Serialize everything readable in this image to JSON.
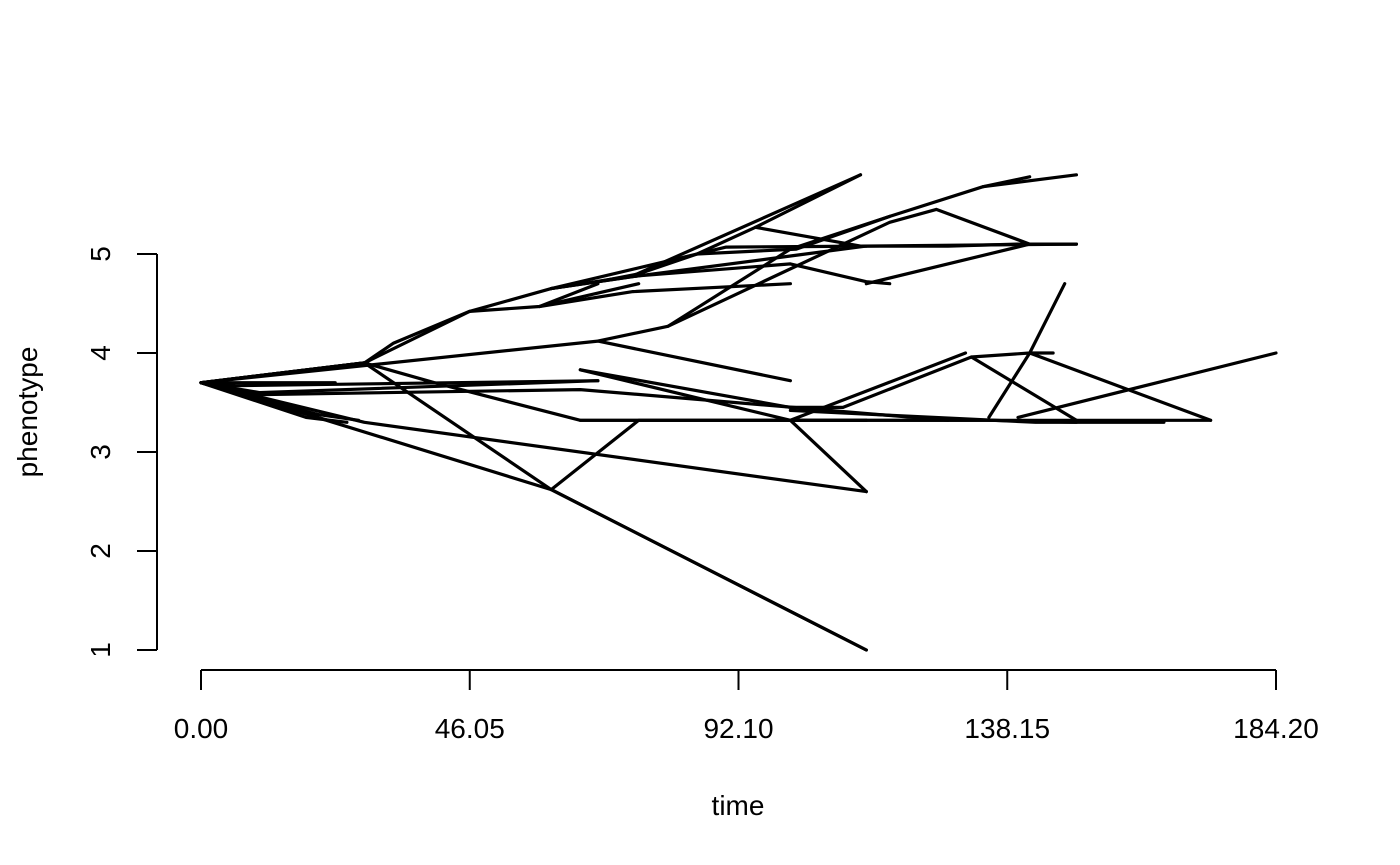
{
  "chart_data": {
    "type": "line",
    "title": "",
    "xlabel": "time",
    "ylabel": "phenotype",
    "xlim": [
      0,
      184.2
    ],
    "ylim": [
      1,
      5.8
    ],
    "x_ticks": [
      "0.00",
      "46.05",
      "92.10",
      "138.15",
      "184.20"
    ],
    "y_ticks": [
      "1",
      "2",
      "3",
      "4",
      "5"
    ],
    "grid": false,
    "legend": "none",
    "series": [
      {
        "x": [
          0,
          5,
          60,
          114
        ],
        "y": [
          3.7,
          3.62,
          2.62,
          1.0
        ]
      },
      {
        "x": [
          0,
          28,
          60,
          114
        ],
        "y": [
          3.7,
          3.9,
          2.62,
          1.0
        ]
      },
      {
        "x": [
          60,
          75,
          101,
          114
        ],
        "y": [
          2.62,
          3.32,
          3.32,
          2.6
        ]
      },
      {
        "x": [
          0,
          28,
          114
        ],
        "y": [
          3.7,
          3.3,
          2.6
        ]
      },
      {
        "x": [
          0,
          17,
          23
        ],
        "y": [
          3.7,
          3.4,
          3.3
        ]
      },
      {
        "x": [
          0,
          23
        ],
        "y": [
          3.7,
          3.7
        ]
      },
      {
        "x": [
          0,
          18,
          25
        ],
        "y": [
          3.7,
          3.35,
          3.3
        ]
      },
      {
        "x": [
          0,
          20,
          27
        ],
        "y": [
          3.7,
          3.38,
          3.32
        ]
      },
      {
        "x": [
          0,
          10,
          68
        ],
        "y": [
          3.7,
          3.6,
          3.72
        ]
      },
      {
        "x": [
          0,
          6,
          68
        ],
        "y": [
          3.7,
          3.67,
          3.72
        ]
      },
      {
        "x": [
          0,
          10,
          65,
          128
        ],
        "y": [
          3.7,
          3.58,
          3.63,
          3.32
        ]
      },
      {
        "x": [
          0,
          28,
          40,
          65,
          101,
          114
        ],
        "y": [
          3.7,
          3.9,
          3.7,
          3.32,
          3.32,
          3.32
        ]
      },
      {
        "x": [
          65,
          85,
          114
        ],
        "y": [
          3.32,
          3.32,
          3.32
        ]
      },
      {
        "x": [
          0,
          28,
          33,
          46,
          60,
          74,
          113
        ],
        "y": [
          3.7,
          3.9,
          4.1,
          4.42,
          4.65,
          4.78,
          5.8
        ]
      },
      {
        "x": [
          0,
          28,
          46,
          58,
          74,
          101
        ],
        "y": [
          3.7,
          3.9,
          4.42,
          4.47,
          4.62,
          4.7
        ]
      },
      {
        "x": [
          58,
          68
        ],
        "y": [
          4.47,
          4.7
        ]
      },
      {
        "x": [
          58,
          75
        ],
        "y": [
          4.47,
          4.7
        ]
      },
      {
        "x": [
          60,
          75,
          101,
          114,
          128,
          140,
          150
        ],
        "y": [
          4.65,
          4.78,
          4.98,
          5.08,
          5.08,
          5.1,
          5.1
        ]
      },
      {
        "x": [
          60,
          90,
          114
        ],
        "y": [
          4.65,
          5.07,
          5.08
        ]
      },
      {
        "x": [
          60,
          75,
          101,
          114,
          118
        ],
        "y": [
          4.65,
          4.78,
          4.9,
          4.72,
          4.7
        ]
      },
      {
        "x": [
          68,
          75,
          85,
          95,
          113
        ],
        "y": [
          4.72,
          4.8,
          5.0,
          5.27,
          5.8
        ]
      },
      {
        "x": [
          95,
          113,
          150
        ],
        "y": [
          5.27,
          5.08,
          5.1
        ]
      },
      {
        "x": [
          85,
          102,
          118
        ],
        "y": [
          5.0,
          5.05,
          5.38
        ]
      },
      {
        "x": [
          0,
          68,
          80,
          101,
          118,
          134,
          150
        ],
        "y": [
          3.7,
          4.12,
          4.27,
          5.05,
          5.38,
          5.68,
          5.8
        ]
      },
      {
        "x": [
          134,
          142
        ],
        "y": [
          5.68,
          5.78
        ]
      },
      {
        "x": [
          80,
          118,
          126,
          142
        ],
        "y": [
          4.27,
          5.32,
          5.45,
          5.1
        ]
      },
      {
        "x": [
          114,
          142
        ],
        "y": [
          4.7,
          5.1
        ]
      },
      {
        "x": [
          68,
          101
        ],
        "y": [
          4.12,
          3.72
        ]
      },
      {
        "x": [
          65,
          101,
          110,
          132,
          142,
          148
        ],
        "y": [
          3.83,
          3.45,
          3.45,
          3.96,
          4.0,
          4.7
        ]
      },
      {
        "x": [
          65,
          101,
          114
        ],
        "y": [
          3.83,
          3.32,
          3.32
        ]
      },
      {
        "x": [
          101,
          131
        ],
        "y": [
          3.32,
          4.0
        ]
      },
      {
        "x": [
          132,
          150
        ],
        "y": [
          3.96,
          3.32
        ]
      },
      {
        "x": [
          101,
          115,
          143,
          150
        ],
        "y": [
          3.42,
          3.38,
          3.3,
          3.3
        ]
      },
      {
        "x": [
          135,
          142,
          173
        ],
        "y": [
          3.35,
          4.0,
          3.32
        ]
      },
      {
        "x": [
          142,
          146
        ],
        "y": [
          4.0,
          4.0
        ]
      },
      {
        "x": [
          101,
          173
        ],
        "y": [
          3.32,
          3.32
        ]
      },
      {
        "x": [
          140,
          184.2
        ],
        "y": [
          3.35,
          4.0
        ]
      },
      {
        "x": [
          114,
          135,
          150,
          165
        ],
        "y": [
          3.32,
          3.32,
          3.3,
          3.3
        ]
      }
    ]
  }
}
